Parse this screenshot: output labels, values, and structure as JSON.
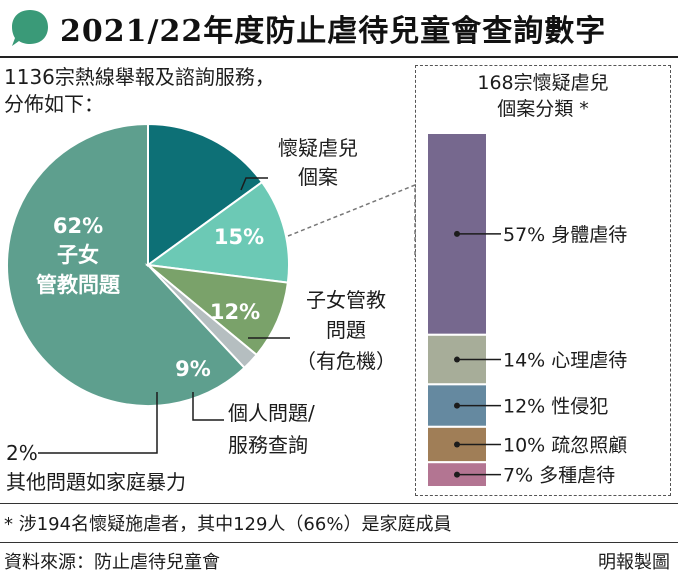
{
  "header": {
    "title": "2021/22年度防止虐待兒童會查詢數字"
  },
  "intro": {
    "line1": "1136宗熱線舉報及諮詢服務，",
    "line2": "分佈如下："
  },
  "colors": {
    "accent_green": "#3a9a78",
    "slice_children_issues": "#5e9f8e",
    "slice_suspected_abuse": "#0d7076",
    "slice_children_crisis": "#6cc9b5",
    "slice_personal_services": "#7aa26a",
    "slice_domestic_violence": "#b5bec0",
    "bar_physical": "#76688e",
    "bar_psychological": "#a7ad99",
    "bar_sexual": "#6589a0",
    "bar_neglect": "#a07e57",
    "bar_multiple": "#b37592"
  },
  "chart_data": [
    {
      "type": "pie",
      "categories": [
        "子女管教問題",
        "懷疑虐兒個案",
        "子女管教問題（有危機）",
        "個人問題/服務查詢",
        "其他問題如家庭暴力"
      ],
      "values": [
        62,
        15,
        12,
        9,
        2
      ],
      "unit": "%",
      "inner_labels": {
        "children_issues_pct": "62%",
        "children_issues_line1": "子女",
        "children_issues_line2": "管教問題",
        "suspected_abuse_pct": "15%",
        "children_crisis_pct": "12%",
        "personal_services_pct": "9%"
      },
      "callouts": {
        "suspected_abuse_line1": "懷疑虐兒",
        "suspected_abuse_line2": "個案",
        "children_crisis_line1": "子女管教",
        "children_crisis_line2": "問題",
        "children_crisis_line3": "（有危機）",
        "personal_services_line1": "個人問題/",
        "personal_services_line2": "服務查詢",
        "domestic_pct": "2%",
        "domestic_label": "其他問題如家庭暴力"
      }
    },
    {
      "type": "bar",
      "stacked": true,
      "title_line1": "168宗懷疑虐兒",
      "title_line2": "個案分類 *",
      "categories": [
        "身體虐待",
        "心理虐待",
        "性侵犯",
        "疏忽照顧",
        "多種虐待"
      ],
      "values": [
        57,
        14,
        12,
        10,
        7
      ],
      "labels": [
        "57% 身體虐待",
        "14% 心理虐待",
        "12% 性侵犯",
        "10% 疏忽照顧",
        "7% 多種虐待"
      ],
      "unit": "%"
    }
  ],
  "footer": {
    "note": "* 涉194名懷疑施虐者，其中129人（66%）是家庭成員",
    "source": "資料來源：防止虐待兒童會",
    "credit": "明報製圖"
  }
}
